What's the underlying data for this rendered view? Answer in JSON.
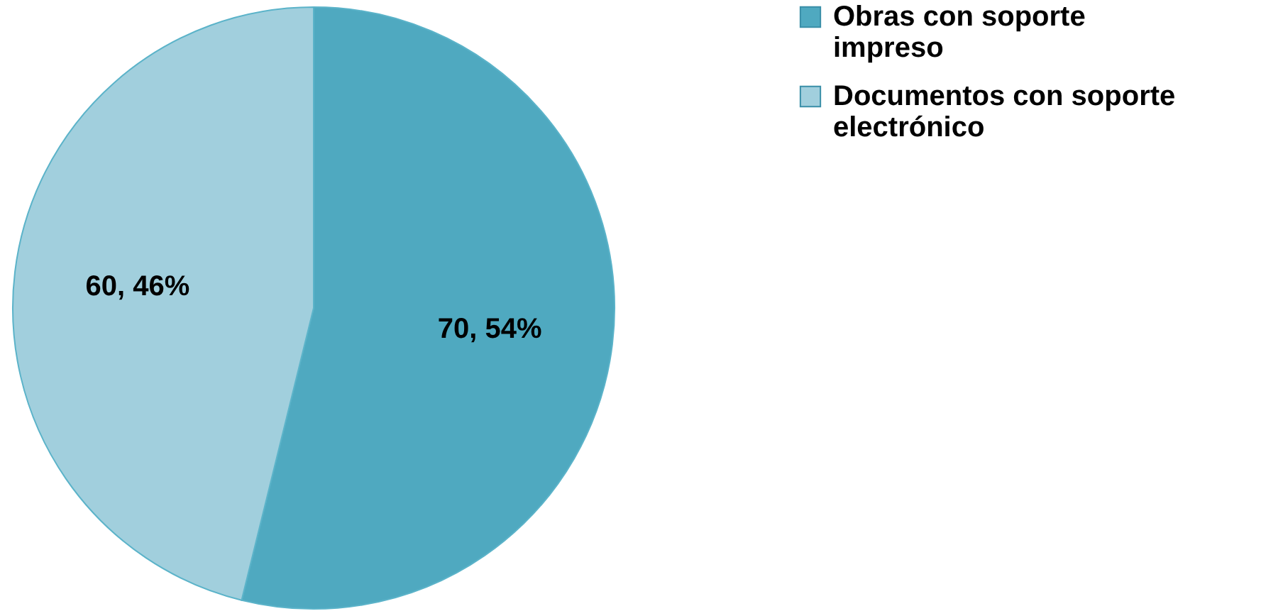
{
  "chart_data": {
    "type": "pie",
    "categories": [
      "Obras con soporte impreso",
      "Documentos con soporte electrónico"
    ],
    "values": [
      70,
      60
    ],
    "colors": [
      "#4fa9c0",
      "#a1cfdd"
    ],
    "value_labels": [
      "70, 54%",
      "60, 46%"
    ],
    "legend": "right"
  }
}
